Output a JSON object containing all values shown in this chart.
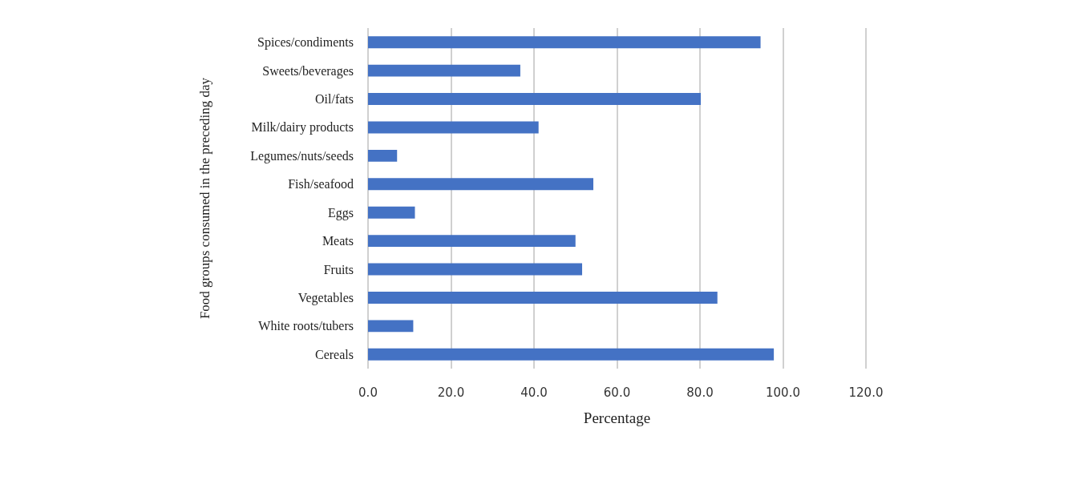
{
  "chart_data": {
    "type": "bar",
    "orientation": "horizontal",
    "xlabel": "Percentage",
    "ylabel": "Food groups consumed in the preceding day",
    "categories": [
      "Spices/condiments",
      "Sweets/beverages",
      "Oil/fats",
      "Milk/dairy products",
      "Legumes/nuts/seeds",
      "Fish/seafood",
      "Eggs",
      "Meats",
      "Fruits",
      "Vegetables",
      "White roots/tubers",
      "Cereals"
    ],
    "values": [
      94.6,
      36.7,
      80.2,
      41.1,
      7.0,
      54.3,
      11.3,
      50.0,
      51.6,
      84.2,
      10.9,
      97.8
    ],
    "color": "#4472c4",
    "xlim": [
      0,
      120
    ],
    "xticks": [
      {
        "value": 0,
        "label": "0.0"
      },
      {
        "value": 20,
        "label": "20.0"
      },
      {
        "value": 40,
        "label": "40.0"
      },
      {
        "value": 60,
        "label": "60.0"
      },
      {
        "value": 80,
        "label": "80.0"
      },
      {
        "value": 100,
        "label": "100.0"
      },
      {
        "value": 120,
        "label": "120.0"
      }
    ],
    "grid": "x"
  }
}
